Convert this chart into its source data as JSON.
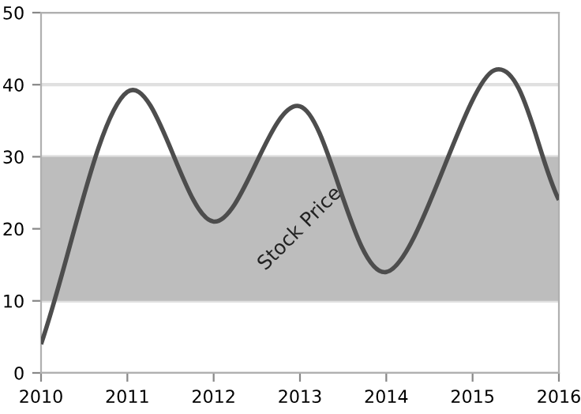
{
  "chart_data": {
    "type": "line",
    "x": [
      2010,
      2011,
      2012,
      2013,
      2014,
      2015.25,
      2016
    ],
    "series": [
      {
        "color": "#4d4d4d",
        "values": [
          4,
          39,
          21,
          37,
          14,
          42,
          24
        ]
      }
    ],
    "xlim": [
      2010,
      2016
    ],
    "xticks": [
      2010,
      2011,
      2012,
      2013,
      2014,
      2015,
      2016
    ],
    "ylim": [
      0,
      50
    ],
    "yticks": [
      0,
      10,
      20,
      30,
      40,
      50
    ],
    "grid": "y",
    "marker": "none",
    "line_style": "solid",
    "bands": [
      {
        "axis": "y",
        "from": 10,
        "to": 30,
        "label": "Stock Price",
        "color": "#bdbdbd"
      }
    ]
  }
}
